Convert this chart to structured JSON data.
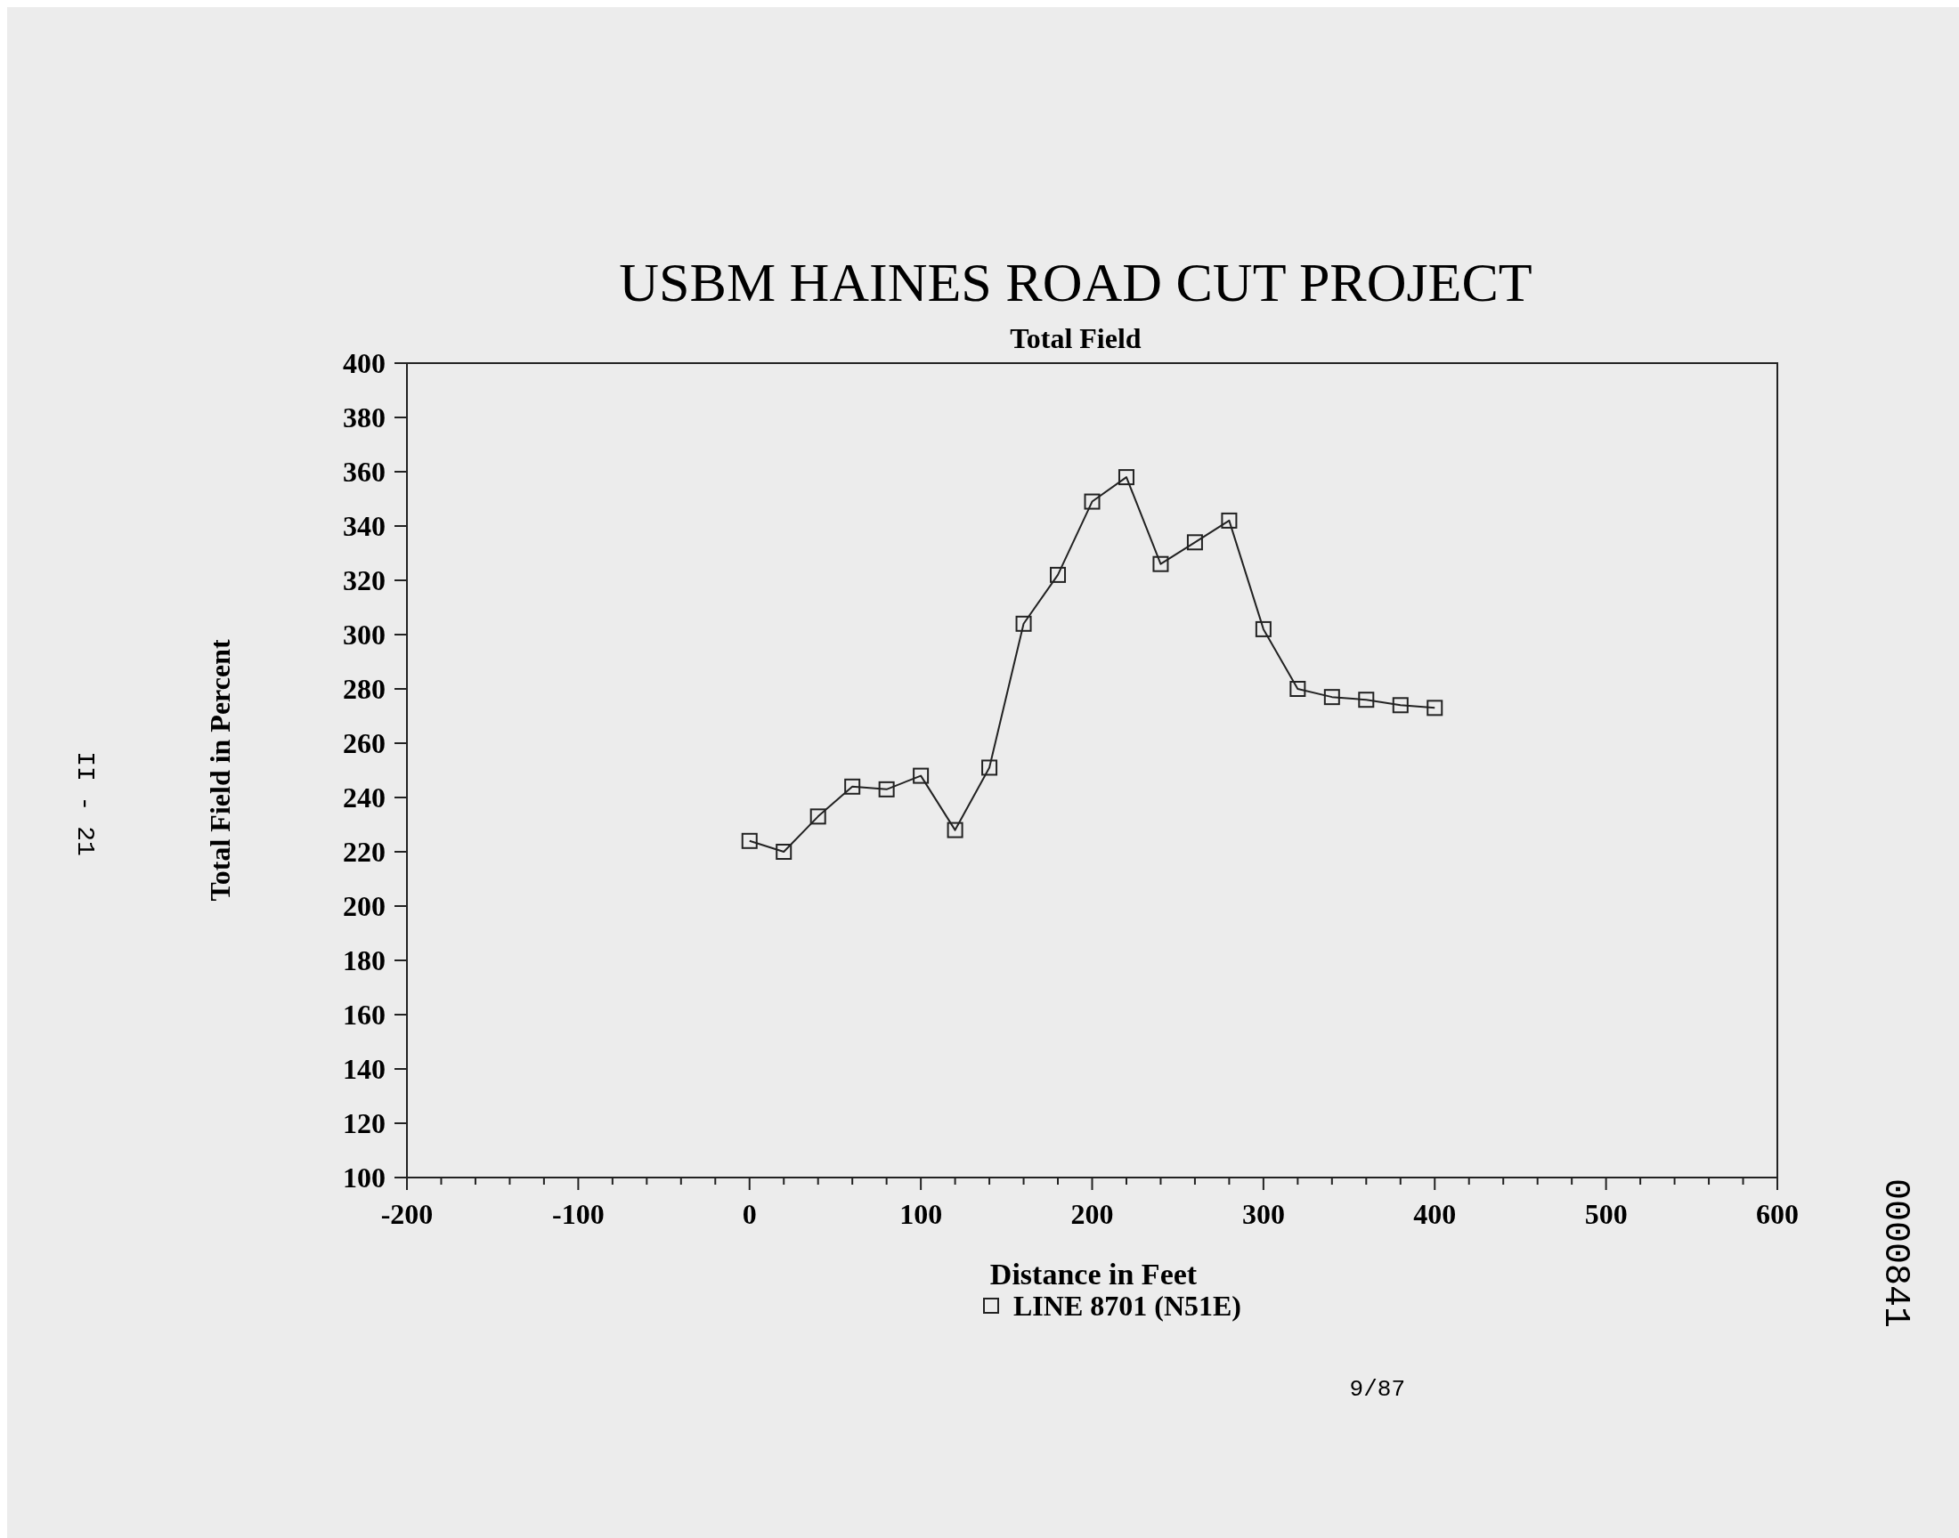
{
  "chart_data": {
    "type": "line",
    "title": "USBM HAINES ROAD CUT PROJECT",
    "subtitle": "Total Field",
    "xlabel": "Distance in Feet",
    "ylabel": "Total Field in Percent",
    "x": [
      0,
      20,
      40,
      60,
      80,
      100,
      120,
      140,
      160,
      180,
      200,
      220,
      240,
      260,
      280,
      300,
      320,
      340,
      360,
      380,
      400
    ],
    "series": [
      {
        "name": "LINE 8701 (N51E)",
        "color": "#222222",
        "values": [
          224,
          220,
          233,
          244,
          243,
          248,
          228,
          251,
          304,
          322,
          349,
          358,
          326,
          334,
          342,
          302,
          280,
          277,
          276,
          274,
          273
        ]
      }
    ],
    "xlim": [
      -200,
      600
    ],
    "ylim": [
      100,
      400
    ],
    "xticks": [
      -200,
      {
        "value": -180,
        "label": null
      },
      {
        "value": -160,
        "label": null
      },
      {
        "value": -140,
        "label": null
      },
      {
        "value": -120,
        "label": null
      },
      -100,
      {
        "value": -80,
        "label": null
      },
      {
        "value": -60,
        "label": null
      },
      {
        "value": -40,
        "label": null
      },
      {
        "value": -20,
        "label": null
      },
      0,
      {
        "value": 20,
        "label": null
      },
      {
        "value": 40,
        "label": null
      },
      {
        "value": 60,
        "label": null
      },
      {
        "value": 80,
        "label": null
      },
      100,
      {
        "value": 120,
        "label": null
      },
      {
        "value": 140,
        "label": null
      },
      {
        "value": 160,
        "label": null
      },
      {
        "value": 180,
        "label": null
      },
      200,
      {
        "value": 220,
        "label": null
      },
      {
        "value": 240,
        "label": null
      },
      {
        "value": 260,
        "label": null
      },
      {
        "value": 280,
        "label": null
      },
      300,
      {
        "value": 320,
        "label": null
      },
      {
        "value": 340,
        "label": null
      },
      {
        "value": 360,
        "label": null
      },
      {
        "value": 380,
        "label": null
      },
      400,
      {
        "value": 420,
        "label": null
      },
      {
        "value": 440,
        "label": null
      },
      {
        "value": 460,
        "label": null
      },
      {
        "value": 480,
        "label": null
      },
      500,
      {
        "value": 520,
        "label": null
      },
      {
        "value": 540,
        "label": null
      },
      {
        "value": 560,
        "label": null
      },
      {
        "value": 580,
        "label": null
      },
      600
    ],
    "yticks": [
      100,
      120,
      140,
      160,
      180,
      200,
      220,
      240,
      260,
      280,
      300,
      320,
      340,
      360,
      380,
      400
    ],
    "grid": false,
    "legend": "bottom",
    "marker": "square",
    "line_style": "solid",
    "annotations": [
      "9/87",
      "II - 21",
      "0000841"
    ]
  }
}
